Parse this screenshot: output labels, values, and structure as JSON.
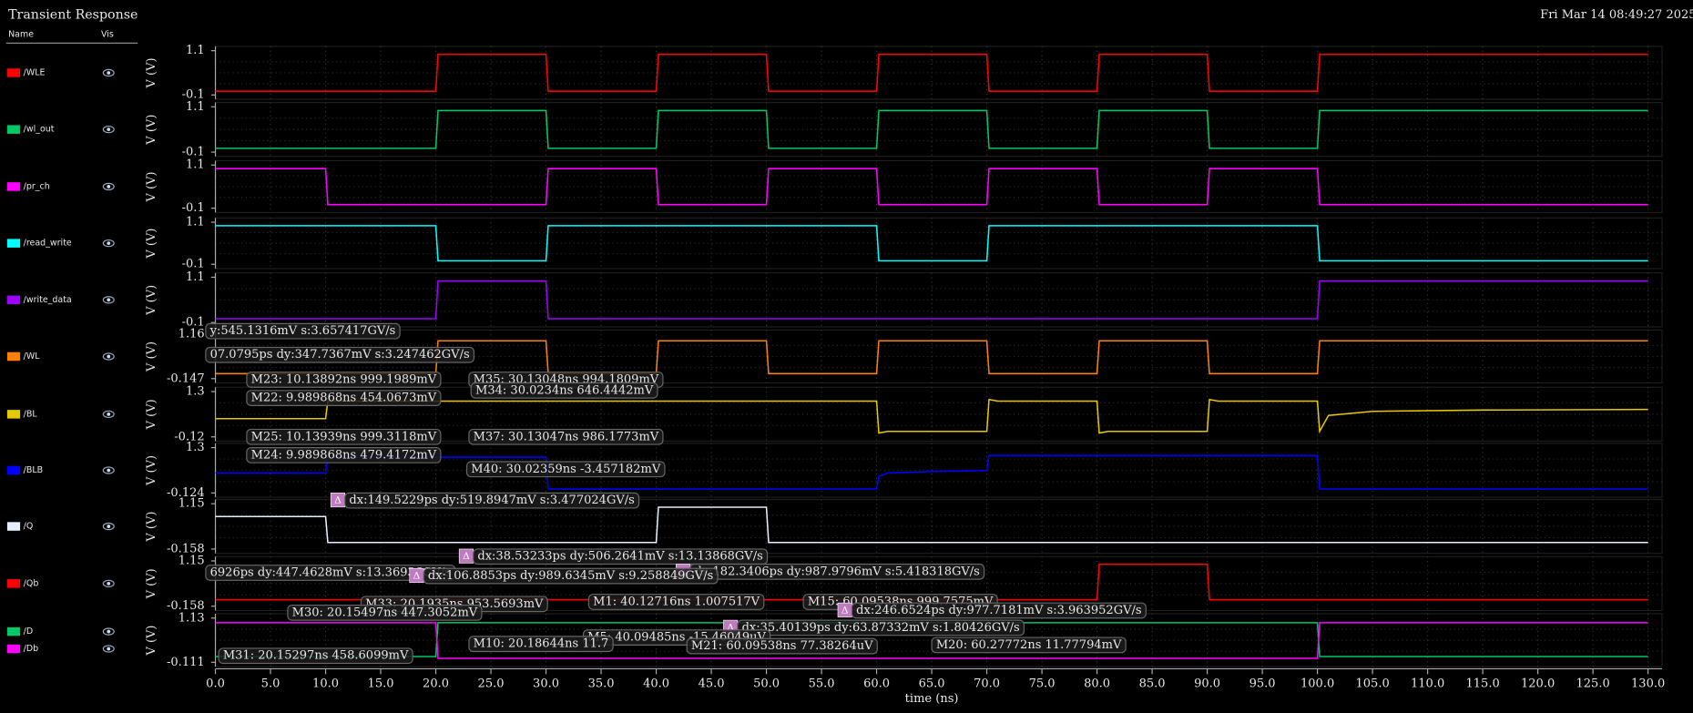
{
  "title": "Transient Response",
  "timestamp": "Fri Mar 14 08:49:27 2025  1",
  "columns": [
    "Name",
    "Vis"
  ],
  "chart_data": [
    {
      "type": "line",
      "ylabel": "V (V)",
      "xlim": [
        0,
        130
      ],
      "ylim": [
        -0.1,
        1.1
      ],
      "yticks": [
        -0.1,
        1.1
      ],
      "series": [
        {
          "name": "/WLE",
          "color": "#ff0000",
          "x": [
            0,
            20,
            20.2,
            30,
            30.2,
            40,
            40.2,
            50,
            50.2,
            60,
            60.2,
            70,
            70.2,
            80,
            80.2,
            90,
            90.2,
            100,
            100.2,
            130
          ],
          "values": [
            0,
            0,
            1,
            1,
            0,
            0,
            1,
            1,
            0,
            0,
            1,
            1,
            0,
            0,
            1,
            1,
            0,
            0,
            1,
            1
          ]
        }
      ]
    },
    {
      "type": "line",
      "ylabel": "V (V)",
      "xlim": [
        0,
        130
      ],
      "ylim": [
        -0.1,
        1.1
      ],
      "yticks": [
        -0.1,
        1.1
      ],
      "series": [
        {
          "name": "/wl_out",
          "color": "#00c864",
          "x": [
            0,
            20,
            20.2,
            30,
            30.2,
            40,
            40.2,
            50,
            50.2,
            60,
            60.2,
            70,
            70.2,
            80,
            80.2,
            90,
            90.2,
            100,
            100.2,
            130
          ],
          "values": [
            0,
            0,
            1,
            1,
            0,
            0,
            1,
            1,
            0,
            0,
            1,
            1,
            0,
            0,
            1,
            1,
            0,
            0,
            1,
            1
          ]
        }
      ]
    },
    {
      "type": "line",
      "ylabel": "V (V)",
      "xlim": [
        0,
        130
      ],
      "ylim": [
        -0.1,
        1.1
      ],
      "yticks": [
        -0.1,
        1.1
      ],
      "series": [
        {
          "name": "/pr_ch",
          "color": "#ff00ff",
          "x": [
            0,
            10,
            10.2,
            30,
            30.2,
            40,
            40.2,
            50,
            50.2,
            60,
            60.2,
            70,
            70.2,
            80,
            80.2,
            90,
            90.2,
            100,
            100.2,
            130
          ],
          "values": [
            1,
            1,
            0,
            0,
            1,
            1,
            0,
            0,
            1,
            1,
            0,
            0,
            1,
            1,
            0,
            0,
            1,
            1,
            0,
            0
          ]
        }
      ]
    },
    {
      "type": "line",
      "ylabel": "V (V)",
      "xlim": [
        0,
        130
      ],
      "ylim": [
        -0.1,
        1.1
      ],
      "yticks": [
        -0.1,
        1.1
      ],
      "series": [
        {
          "name": "/read_write",
          "color": "#00ffff",
          "x": [
            0,
            20,
            20.2,
            30,
            30.2,
            60,
            60.2,
            70,
            70.2,
            100,
            100.2,
            130
          ],
          "values": [
            1,
            1,
            0,
            0,
            1,
            1,
            0,
            0,
            1,
            1,
            0,
            0
          ]
        }
      ]
    },
    {
      "type": "line",
      "ylabel": "V (V)",
      "xlim": [
        0,
        130
      ],
      "ylim": [
        -0.1,
        1.1
      ],
      "yticks": [
        -0.1,
        1.1
      ],
      "series": [
        {
          "name": "/write_data",
          "color": "#a000ff",
          "x": [
            0,
            20,
            20.2,
            30,
            30.2,
            100,
            100.2,
            130
          ],
          "values": [
            0,
            0,
            1,
            1,
            0,
            0,
            1,
            1
          ]
        }
      ]
    },
    {
      "type": "line",
      "ylabel": "V (V)",
      "xlim": [
        0,
        130
      ],
      "ylim": [
        -0.147,
        1.16
      ],
      "yticks": [
        -0.147,
        1.16
      ],
      "series": [
        {
          "name": "/WL",
          "color": "#ff8000",
          "x": [
            0,
            20,
            20.2,
            30,
            30.2,
            40,
            40.2,
            50,
            50.2,
            60,
            60.2,
            70,
            70.2,
            80,
            80.2,
            90,
            90.2,
            100,
            100.2,
            130
          ],
          "values": [
            0,
            0,
            0.97,
            0.97,
            0,
            0,
            0.97,
            0.97,
            0,
            0,
            0.97,
            0.97,
            0,
            0,
            0.97,
            0.97,
            0,
            0,
            0.97,
            0.97
          ]
        }
      ]
    },
    {
      "type": "line",
      "ylabel": "V (V)",
      "xlim": [
        0,
        130
      ],
      "ylim": [
        -0.12,
        1.3
      ],
      "yticks": [
        -0.12,
        1.3
      ],
      "series": [
        {
          "name": "/BL",
          "color": "#e6c800",
          "x": [
            0,
            10,
            10.2,
            60,
            60.2,
            61,
            70,
            70.2,
            71,
            80,
            80.2,
            81,
            90,
            90.2,
            91,
            100,
            100.2,
            101,
            105,
            115,
            130
          ],
          "values": [
            0.45,
            0.45,
            1.0,
            1.0,
            0.0,
            0.05,
            0.05,
            1.05,
            1.0,
            1.0,
            0.0,
            0.05,
            0.05,
            1.05,
            1.0,
            1.0,
            0.05,
            0.55,
            0.68,
            0.72,
            0.74
          ]
        }
      ]
    },
    {
      "type": "line",
      "ylabel": "V (V)",
      "xlim": [
        0,
        130
      ],
      "ylim": [
        -0.124,
        1.3
      ],
      "yticks": [
        -0.124,
        1.3
      ],
      "series": [
        {
          "name": "/BLB",
          "color": "#0000ff",
          "x": [
            0,
            10,
            10.2,
            30,
            30.2,
            60,
            60.2,
            61,
            65,
            70,
            70.2,
            100,
            100.2,
            130
          ],
          "values": [
            0.5,
            0.5,
            1.0,
            1.0,
            0.0,
            0.0,
            0.4,
            0.5,
            0.55,
            0.58,
            1.05,
            1.05,
            0.0,
            0.0
          ]
        }
      ]
    },
    {
      "type": "line",
      "ylabel": "V (V)",
      "xlim": [
        0,
        130
      ],
      "ylim": [
        -0.158,
        1.15
      ],
      "yticks": [
        -0.158,
        1.15
      ],
      "series": [
        {
          "name": "/Q",
          "color": "#e8eeff",
          "x": [
            0,
            10,
            10.2,
            40,
            40.2,
            50,
            50.2,
            130
          ],
          "values": [
            0.78,
            0.78,
            0.03,
            0.03,
            1.05,
            1.05,
            0.03,
            0.03
          ]
        }
      ]
    },
    {
      "type": "line",
      "ylabel": "V (V)",
      "xlim": [
        0,
        130
      ],
      "ylim": [
        -0.158,
        1.15
      ],
      "yticks": [
        -0.158,
        1.15
      ],
      "series": [
        {
          "name": "/Qb",
          "color": "#ff0000",
          "x": [
            0,
            80,
            80.2,
            90,
            90.2,
            130
          ],
          "values": [
            0.03,
            0.03,
            1.05,
            1.05,
            0.03,
            0.03
          ]
        }
      ]
    },
    {
      "type": "line",
      "ylabel": "V (V)",
      "xlabel": "time (ns)",
      "xlim": [
        0,
        130
      ],
      "ylim": [
        -0.111,
        1.13
      ],
      "yticks": [
        -0.111,
        1.13
      ],
      "xticks": [
        {
          "value": 0,
          "label": "0.0"
        },
        {
          "value": 5,
          "label": "5.0"
        },
        {
          "value": 10,
          "label": "10.0"
        },
        {
          "value": 15,
          "label": "15.0"
        },
        {
          "value": 20,
          "label": "20.0"
        },
        {
          "value": 25,
          "label": "25.0"
        },
        {
          "value": 30,
          "label": "30.0"
        },
        {
          "value": 35,
          "label": "35.0"
        },
        {
          "value": 40,
          "label": "40.0"
        },
        {
          "value": 45,
          "label": "45.0"
        },
        {
          "value": 50,
          "label": "50.0"
        },
        {
          "value": 55,
          "label": "55.0"
        },
        {
          "value": 60,
          "label": "60.0"
        },
        {
          "value": 65,
          "label": "65.0"
        },
        {
          "value": 70,
          "label": "70.0"
        },
        {
          "value": 75,
          "label": "75.0"
        },
        {
          "value": 80,
          "label": "80.0"
        },
        {
          "value": 85,
          "label": "85.0"
        },
        {
          "value": 90,
          "label": "90.0"
        },
        {
          "value": 95,
          "label": "95.0"
        },
        {
          "value": 100,
          "label": "100.0"
        },
        {
          "value": 105,
          "label": "105.0"
        },
        {
          "value": 110,
          "label": "110.0"
        },
        {
          "value": 115,
          "label": "115.0"
        },
        {
          "value": 120,
          "label": "120.0"
        },
        {
          "value": 125,
          "label": "125.0"
        },
        {
          "value": 130,
          "label": "130.0"
        }
      ],
      "series": [
        {
          "name": "/D",
          "color": "#00c864",
          "x": [
            0,
            20,
            20.2,
            100,
            100.2,
            130
          ],
          "values": [
            0.05,
            0.05,
            1.0,
            1.0,
            0.05,
            0.05
          ]
        },
        {
          "name": "/Db",
          "color": "#ff00ff",
          "x": [
            0,
            20,
            20.2,
            100,
            100.2,
            130
          ],
          "values": [
            1.0,
            1.0,
            0.0,
            0.0,
            1.0,
            1.0
          ]
        }
      ]
    }
  ],
  "annotations": [
    {
      "text": "y:545.1316mV s:3.657417GV/s"
    },
    {
      "text": "07.0795ps dy:347.7367mV s:3.247462GV/s"
    },
    {
      "text": "M23: 10.13892ns 999.1989mV"
    },
    {
      "text": "M22: 9.989868ns 454.0673mV"
    },
    {
      "text": "M35: 30.13048ns 994.1809mV"
    },
    {
      "text": "M34: 30.0234ns 646.4442mV"
    },
    {
      "text": "M25: 10.13939ns 999.3118mV"
    },
    {
      "text": "M37: 30.13047ns 986.1773mV"
    },
    {
      "text": "M24: 9.989868ns 479.4172mV"
    },
    {
      "text": "M40: 30.02359ns -3.457182mV"
    },
    {
      "icon": "Δ",
      "text": "dx:149.5229ps dy:519.8947mV s:3.477024GV/s"
    },
    {
      "icon": "Δ",
      "text": "dx:38.53233ps dy:506.2641mV s:13.13868GV/s"
    },
    {
      "icon": "Δ",
      "text": "dx:182.3406ps dy:987.9796mV s:5.418318GV/s"
    },
    {
      "text": "6926ps dy:447.4628mV s:13.36936GV/s"
    },
    {
      "icon": "Δ",
      "text": "dx:106.8853ps dy:989.6345mV s:9.258849GV/s"
    },
    {
      "text": "M33: 20.1935ns 953.5693mV"
    },
    {
      "text": "M1: 40.12716ns 1.007517V"
    },
    {
      "text": "M15: 60.09538ns 999.7575mV"
    },
    {
      "icon": "Δ",
      "text": "dx:246.6524ps dy:977.7181mV s:3.963952GV/s"
    },
    {
      "text": "M30: 20.15497ns 447.3052mV"
    },
    {
      "icon": "Δ",
      "text": "dx:35.40139ps dy:63.87332mV s:1.80426GV/s"
    },
    {
      "text": "M5: 40.09485ns -15.46049uV"
    },
    {
      "text": "M21: 60.09538ns 77.38264uV"
    },
    {
      "text": "M10: 20.18644ns 11.7"
    },
    {
      "text": "M20: 60.27772ns 11.77794mV"
    },
    {
      "text": "M31: 20.15297ns 458.6099mV"
    }
  ]
}
